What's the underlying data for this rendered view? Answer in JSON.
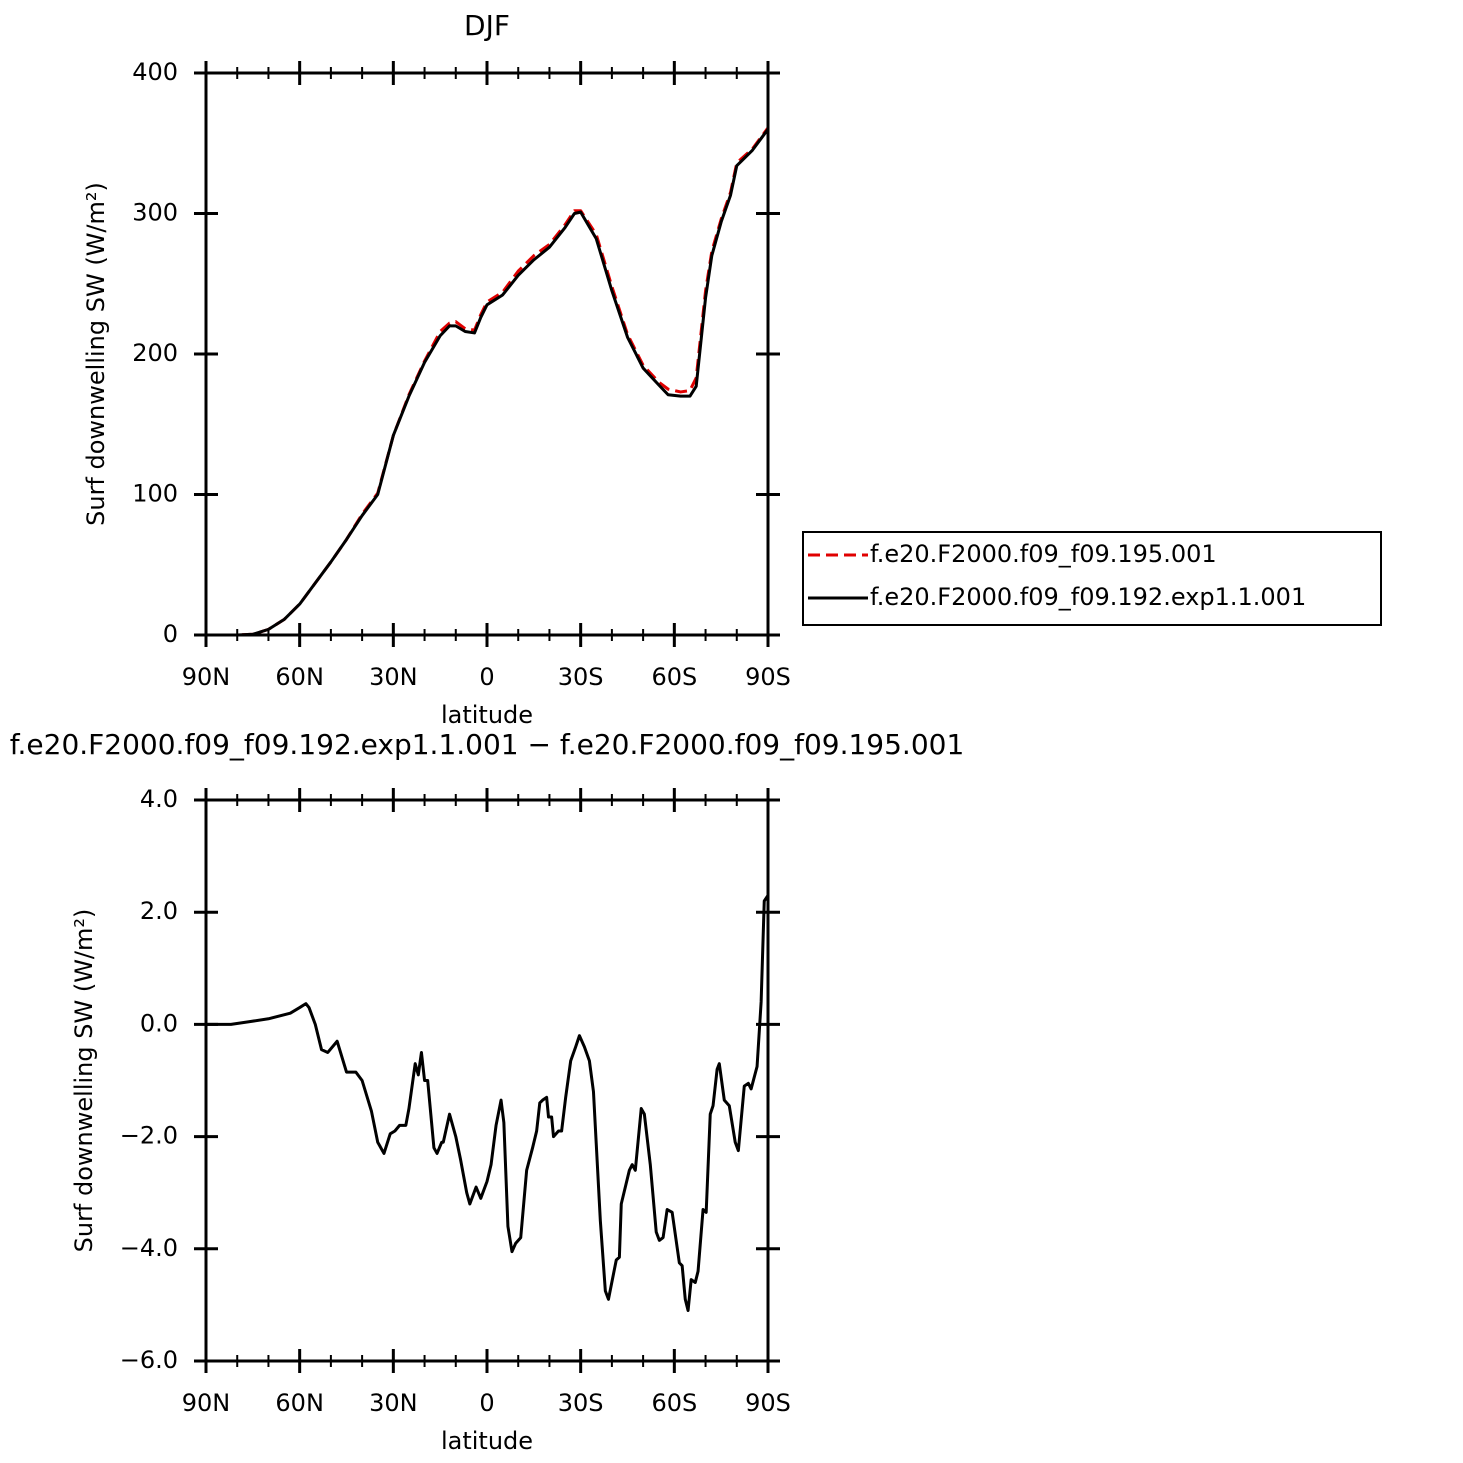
{
  "chart_data": [
    {
      "type": "line",
      "title": "DJF",
      "xlabel": "latitude",
      "ylabel": "Surf downwelling SW (W/m²)",
      "x": [
        90,
        85,
        80,
        75,
        70,
        65,
        60,
        55,
        50,
        45,
        40,
        35,
        30,
        25,
        20,
        15,
        12,
        10,
        7,
        4,
        2,
        0,
        -5,
        -10,
        -15,
        -20,
        -25,
        -28,
        -30,
        -35,
        -40,
        -45,
        -50,
        -55,
        -58,
        -62,
        -65,
        -67,
        -70,
        -72,
        -75,
        -78,
        -80,
        -85,
        -90
      ],
      "series": [
        {
          "name": "f.e20.F2000.f09_f09.195.001",
          "color": "#e00000",
          "dash": true,
          "values": [
            0,
            0,
            0,
            0.5,
            4,
            11,
            22,
            37,
            52,
            68,
            86,
            101,
            142,
            171,
            195,
            216,
            222,
            223,
            218,
            217,
            228,
            237,
            244,
            259,
            270,
            278,
            292,
            302,
            302,
            285,
            248,
            214,
            192,
            180,
            175,
            173,
            174,
            183,
            245,
            273,
            296,
            315,
            336,
            346,
            361
          ]
        },
        {
          "name": "f.e20.F2000.f09_f09.192.exp1.1.001",
          "color": "#000000",
          "dash": false,
          "values": [
            0,
            0,
            0,
            0.5,
            4,
            11,
            22,
            37,
            52,
            68,
            85,
            100,
            142,
            170,
            194,
            213,
            220,
            220,
            216,
            215,
            226,
            235,
            242,
            256,
            267,
            276,
            290,
            300,
            301,
            282,
            245,
            212,
            190,
            178,
            171,
            170,
            170,
            177,
            240,
            270,
            294,
            313,
            334,
            345,
            360
          ]
        }
      ],
      "legend": "outside right",
      "xlim": [
        90,
        -90
      ],
      "xticks": [
        {
          "value": 90,
          "label": "90N"
        },
        {
          "value": 60,
          "label": "60N"
        },
        {
          "value": 30,
          "label": "30N"
        },
        0,
        {
          "value": -30,
          "label": "30S"
        },
        {
          "value": -60,
          "label": "60S"
        },
        {
          "value": -90,
          "label": "90S"
        }
      ],
      "xminorticks": [
        80,
        70,
        50,
        40,
        20,
        10,
        -10,
        -20,
        -40,
        -50,
        -70,
        -80
      ],
      "ylim": [
        0,
        400
      ],
      "yticks": [
        0,
        100,
        200,
        300,
        400
      ]
    },
    {
      "type": "line",
      "title": "f.e20.F2000.f09_f09.192.exp1.1.001 − f.e20.F2000.f09_f09.195.001",
      "xlabel": "latitude",
      "ylabel": "Surf downwelling SW (W/m²)",
      "x": [
        90,
        82,
        76,
        70,
        63,
        60,
        58,
        57,
        55,
        53,
        51,
        48,
        45,
        42,
        40,
        37,
        35,
        33,
        31,
        29.5,
        28,
        26,
        25,
        23,
        22,
        21,
        20,
        19,
        17,
        16,
        14.5,
        14,
        12,
        10,
        8.5,
        6.5,
        5.5,
        3.5,
        2,
        0,
        -1.3,
        -2.9,
        -4.5,
        -5.4,
        -6.7,
        -8,
        -9.2,
        -10.8,
        -12.7,
        -14.6,
        -15.9,
        -16.9,
        -17.8,
        -19.1,
        -19.7,
        -20.7,
        -21.3,
        -22.9,
        -23.9,
        -25.2,
        -26.8,
        -28.4,
        -29.6,
        -31.2,
        -32.8,
        -34.1,
        -36.3,
        -37.9,
        -38.9,
        -41.4,
        -42.4,
        -43,
        -45.6,
        -46.5,
        -47.5,
        -49.4,
        -50.4,
        -52.3,
        -54.2,
        -55.2,
        -56.4,
        -57.7,
        -59.3,
        -61.6,
        -62.5,
        -63.5,
        -64.4,
        -65.4,
        -66.7,
        -67.6,
        -69.2,
        -70.2,
        -71.5,
        -72.4,
        -73.7,
        -74.4,
        -76,
        -77.6,
        -79.5,
        -80.5,
        -82.4,
        -83.7,
        -84.6,
        -86.5,
        -87.8,
        -88.8,
        -90
      ],
      "series": [
        {
          "color": "#000000",
          "dash": false,
          "values": [
            0,
            0,
            0.05,
            0.1,
            0.2,
            0.3,
            0.37,
            0.3,
            0,
            -0.45,
            -0.5,
            -0.3,
            -0.85,
            -0.85,
            -1.0,
            -1.55,
            -2.1,
            -2.3,
            -1.95,
            -1.9,
            -1.8,
            -1.8,
            -1.5,
            -0.7,
            -0.9,
            -0.5,
            -1.0,
            -1.0,
            -2.2,
            -2.3,
            -2.1,
            -2.1,
            -1.6,
            -2.0,
            -2.4,
            -3.0,
            -3.2,
            -2.9,
            -3.1,
            -2.8,
            -2.5,
            -1.8,
            -1.35,
            -1.75,
            -3.6,
            -4.05,
            -3.9,
            -3.8,
            -2.6,
            -2.2,
            -1.9,
            -1.4,
            -1.35,
            -1.3,
            -1.65,
            -1.65,
            -2.0,
            -1.9,
            -1.9,
            -1.3,
            -0.65,
            -0.4,
            -0.2,
            -0.4,
            -0.65,
            -1.2,
            -3.5,
            -4.75,
            -4.9,
            -4.2,
            -4.15,
            -3.2,
            -2.6,
            -2.5,
            -2.6,
            -1.5,
            -1.6,
            -2.5,
            -3.7,
            -3.85,
            -3.8,
            -3.3,
            -3.35,
            -4.25,
            -4.3,
            -4.9,
            -5.1,
            -4.55,
            -4.6,
            -4.4,
            -3.3,
            -3.35,
            -1.6,
            -1.45,
            -0.8,
            -0.7,
            -1.35,
            -1.45,
            -2.1,
            -2.25,
            -1.1,
            -1.05,
            -1.15,
            -0.75,
            0.4,
            2.2,
            2.3
          ]
        }
      ],
      "xlim": [
        90,
        -90
      ],
      "xticks": [
        {
          "value": 90,
          "label": "90N"
        },
        {
          "value": 60,
          "label": "60N"
        },
        {
          "value": 30,
          "label": "30N"
        },
        0,
        {
          "value": -30,
          "label": "30S"
        },
        {
          "value": -60,
          "label": "60S"
        },
        {
          "value": -90,
          "label": "90S"
        }
      ],
      "xminorticks": [
        80,
        70,
        50,
        40,
        20,
        10,
        -10,
        -20,
        -40,
        -50,
        -70,
        -80
      ],
      "ylim": [
        -6,
        4
      ],
      "yticks": [
        {
          "value": -6,
          "label": "−6.0"
        },
        {
          "value": -4,
          "label": "−4.0"
        },
        {
          "value": -2,
          "label": "−2.0"
        },
        {
          "value": 0,
          "label": "0.0"
        },
        {
          "value": 2,
          "label": "2.0"
        },
        {
          "value": 4,
          "label": "4.0"
        }
      ]
    }
  ]
}
